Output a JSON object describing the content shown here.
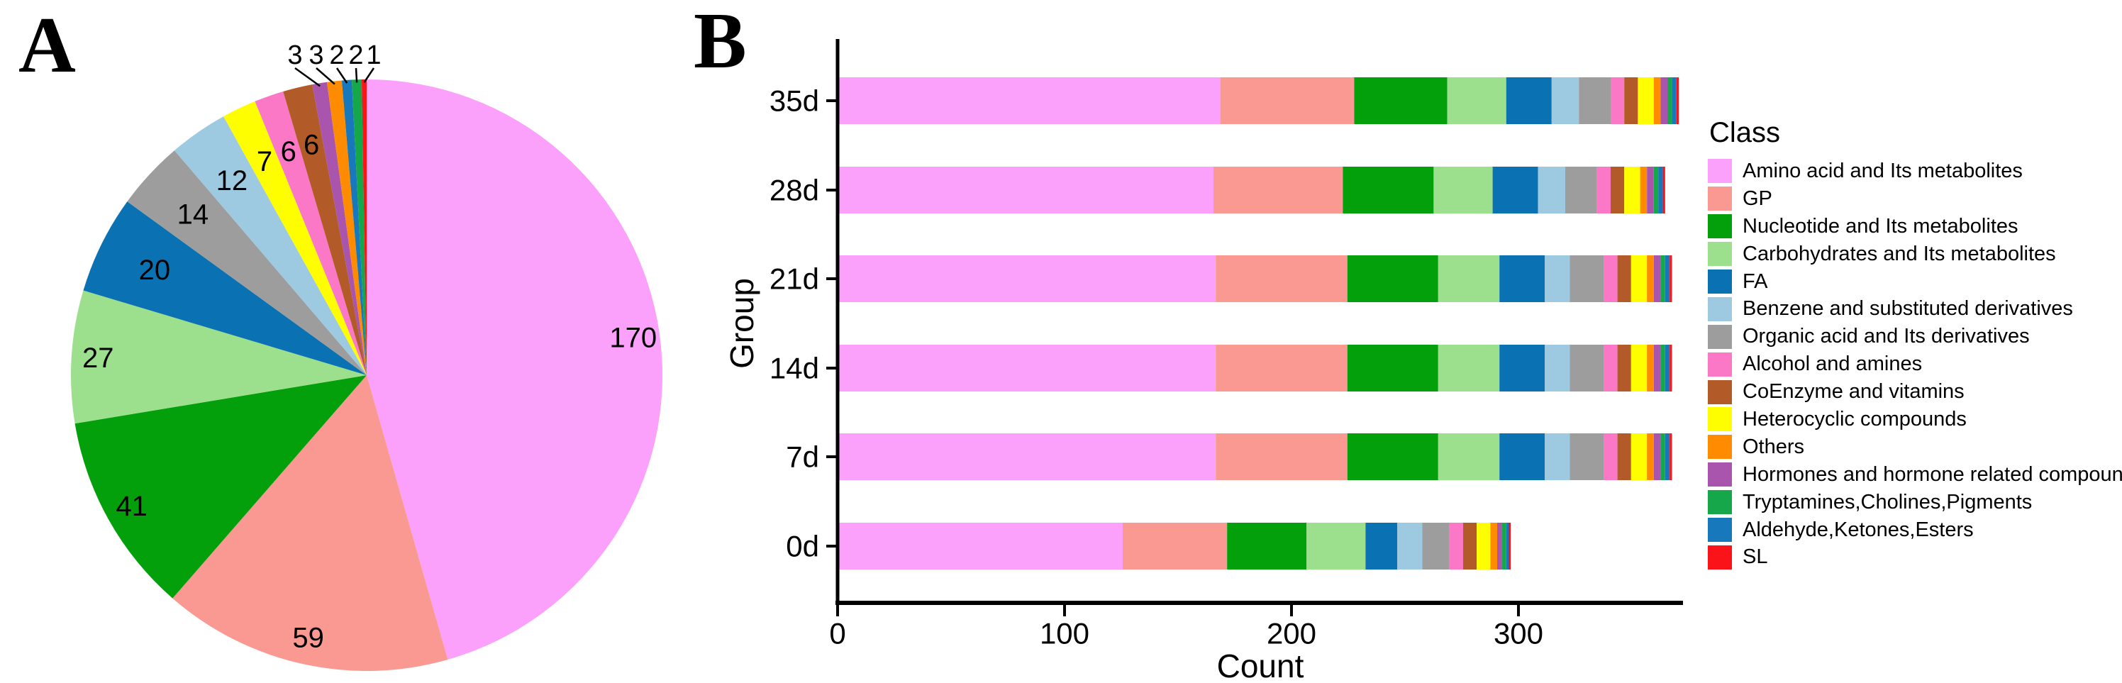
{
  "panelA": {
    "label": "A"
  },
  "panelB": {
    "label": "B"
  },
  "legend": {
    "title": "Class",
    "items": [
      {
        "label": "Amino acid and Its metabolites",
        "color": "#FBA1FB"
      },
      {
        "label": "GP",
        "color": "#FA9991"
      },
      {
        "label": "Nucleotide and Its metabolites",
        "color": "#03A00B"
      },
      {
        "label": "Carbohydrates and Its metabolites",
        "color": "#9CDF8C"
      },
      {
        "label": "FA",
        "color": "#0A72B2"
      },
      {
        "label": "Benzene and substituted derivatives",
        "color": "#9ECAE1"
      },
      {
        "label": "Organic acid and Its derivatives",
        "color": "#9D9D9D"
      },
      {
        "label": "Alcohol and amines",
        "color": "#FA78C5"
      },
      {
        "label": "CoEnzyme and vitamins",
        "color": "#B25A28"
      },
      {
        "label": "Heterocyclic compounds",
        "color": "#FEFE00"
      },
      {
        "label": "Others",
        "color": "#FE8B00"
      },
      {
        "label": "Hormones and hormone related compounds",
        "color": "#AA55AD"
      },
      {
        "label": "Tryptamines,Cholines,Pigments",
        "color": "#17A74B"
      },
      {
        "label": "Aldehyde,Ketones,Esters",
        "color": "#1779BB"
      },
      {
        "label": "SL",
        "color": "#FA1419"
      }
    ]
  },
  "chart_data": [
    {
      "type": "pie",
      "panel": "A",
      "title": "",
      "start_angle_deg": 0,
      "direction": "clockwise",
      "total": 373,
      "slices": [
        {
          "label": "Amino acid and Its metabolites",
          "value": 170,
          "color": "#FBA1FB"
        },
        {
          "label": "GP",
          "value": 59,
          "color": "#FA9991"
        },
        {
          "label": "Nucleotide and Its metabolites",
          "value": 41,
          "color": "#03A00B"
        },
        {
          "label": "Carbohydrates and Its metabolites",
          "value": 27,
          "color": "#9CDF8C"
        },
        {
          "label": "FA",
          "value": 20,
          "color": "#0A72B2"
        },
        {
          "label": "Organic acid and Its derivatives",
          "value": 14,
          "color": "#9D9D9D"
        },
        {
          "label": "Benzene and substituted derivatives",
          "value": 12,
          "color": "#9ECAE1"
        },
        {
          "label": "Heterocyclic compounds",
          "value": 7,
          "color": "#FEFE00"
        },
        {
          "label": "Alcohol and amines",
          "value": 6,
          "color": "#FA78C5"
        },
        {
          "label": "CoEnzyme and vitamins",
          "value": 6,
          "color": "#B25A28"
        },
        {
          "label": "Hormones and hormone related compounds",
          "value": 3,
          "color": "#AA55AD"
        },
        {
          "label": "Others",
          "value": 3,
          "color": "#FE8B00"
        },
        {
          "label": "Aldehyde,Ketones,Esters",
          "value": 2,
          "color": "#1779BB"
        },
        {
          "label": "Tryptamines,Cholines,Pigments",
          "value": 2,
          "color": "#17A74B"
        },
        {
          "label": "SL",
          "value": 1,
          "color": "#FA1419"
        }
      ]
    },
    {
      "type": "bar",
      "panel": "B",
      "orientation": "horizontal",
      "stacked": true,
      "grid": false,
      "legend_position": "right",
      "legend_title": "Class",
      "xlabel": "Count",
      "ylabel": "Group",
      "xlim": [
        0,
        375
      ],
      "xticks": [
        "0",
        "100",
        "200",
        "300"
      ],
      "xtick_values": [
        0,
        100,
        200,
        300
      ],
      "categories": [
        "35d",
        "28d",
        "21d",
        "14d",
        "7d",
        "0d"
      ],
      "series": [
        {
          "name": "Amino acid and Its metabolites",
          "color": "#FBA1FB",
          "values": [
            168,
            165,
            166,
            166,
            166,
            125
          ]
        },
        {
          "name": "GP",
          "color": "#FA9991",
          "values": [
            59,
            57,
            58,
            58,
            58,
            46
          ]
        },
        {
          "name": "Nucleotide and Its metabolites",
          "color": "#03A00B",
          "values": [
            41,
            40,
            40,
            40,
            40,
            35
          ]
        },
        {
          "name": "Carbohydrates and Its metabolites",
          "color": "#9CDF8C",
          "values": [
            26,
            26,
            27,
            27,
            27,
            26
          ]
        },
        {
          "name": "FA",
          "color": "#0A72B2",
          "values": [
            20,
            20,
            20,
            20,
            20,
            14
          ]
        },
        {
          "name": "Benzene and substituted derivatives",
          "color": "#9ECAE1",
          "values": [
            12,
            12,
            11,
            11,
            11,
            11
          ]
        },
        {
          "name": "Organic acid and Its derivatives",
          "color": "#9D9D9D",
          "values": [
            14,
            14,
            15,
            15,
            15,
            12
          ]
        },
        {
          "name": "Alcohol and amines",
          "color": "#FA78C5",
          "values": [
            6,
            6,
            6,
            6,
            6,
            6
          ]
        },
        {
          "name": "CoEnzyme and vitamins",
          "color": "#B25A28",
          "values": [
            6,
            6,
            6,
            6,
            6,
            6
          ]
        },
        {
          "name": "Heterocyclic compounds",
          "color": "#FEFE00",
          "values": [
            7,
            7,
            7,
            7,
            7,
            6
          ]
        },
        {
          "name": "Others",
          "color": "#FE8B00",
          "values": [
            3,
            3,
            3,
            3,
            3,
            3
          ]
        },
        {
          "name": "Hormones and hormone related compounds",
          "color": "#AA55AD",
          "values": [
            3,
            3,
            3,
            3,
            3,
            2
          ]
        },
        {
          "name": "Tryptamines,Cholines,Pigments",
          "color": "#17A74B",
          "values": [
            2,
            2,
            2,
            2,
            2,
            2
          ]
        },
        {
          "name": "Aldehyde,Ketones,Esters",
          "color": "#1779BB",
          "values": [
            2,
            2,
            2,
            2,
            2,
            1
          ]
        },
        {
          "name": "SL",
          "color": "#FA1419",
          "values": [
            1,
            1,
            1,
            1,
            1,
            1
          ]
        }
      ]
    }
  ]
}
